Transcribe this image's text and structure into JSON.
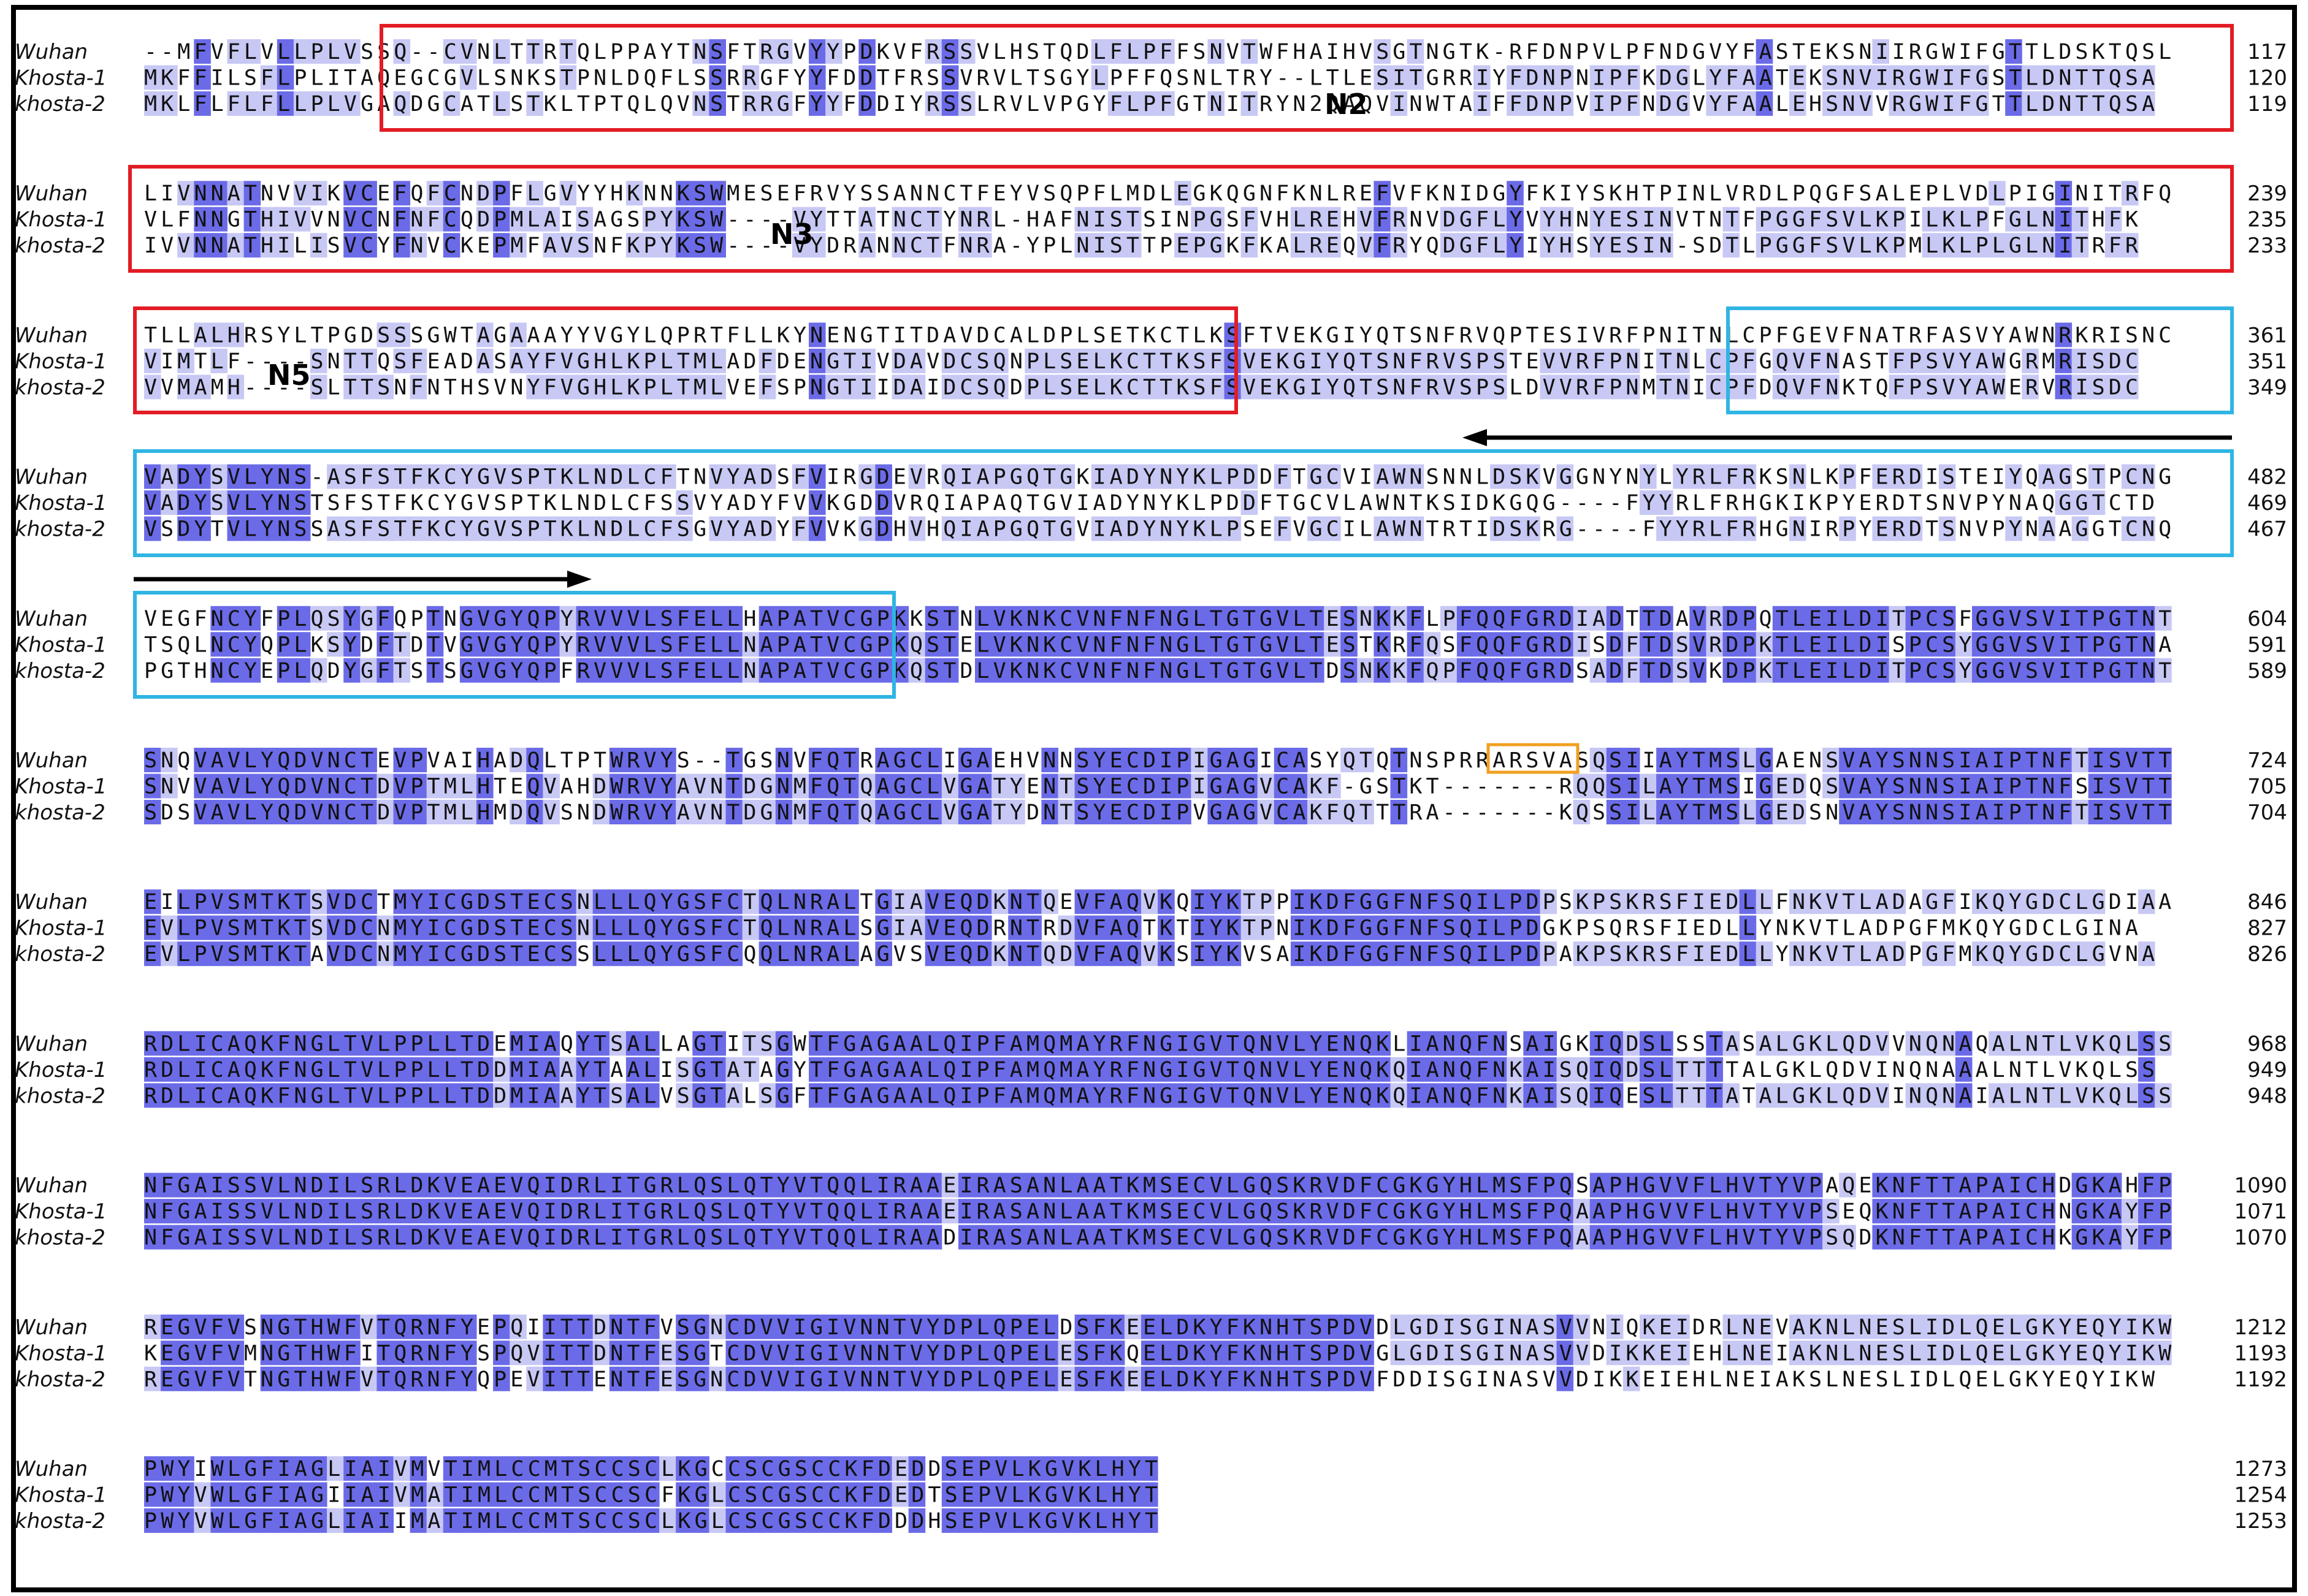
{
  "colors": {
    "dark": "#6b6be8",
    "light": "#c8c8f5",
    "red_box": "#e21c24",
    "blue_box": "#2fb5e3",
    "orange_box": "#f0a020",
    "arrow": "#000000",
    "frame": "#000000"
  },
  "sequences": [
    "Wuhan",
    "Khosta-1",
    "khosta-2"
  ],
  "blocks": [
    {
      "rows": [
        {
          "label": "Wuhan",
          "seq": "--MFVFLVLLPLVSSQ--CVNLTTRTQLPPAYTNSFTRGVYYPDKVFRSSVLHSTQDLFLPFFSNVTWFHAIHVSGTNGTK-RFDNPVLPFNDGVYFASTEKSNIIRGWIFGTTLDSKTQSL",
          "num": "117"
        },
        {
          "label": "Khosta-1",
          "seq": "MKFFILSFLPLITAQEGCGVLSNKSTPNLDQFLSSRRGFYYFDDTFRSSVRVLTSGYLPFFQSNLTRY--LTLESITGRRIYFDNPNIPFKDGLYFAATEKSNVIRGWIFGSTLDNTTQSA",
          "num": "120"
        },
        {
          "label": "khosta-2",
          "seq": "MKLFLFLFLLPLVGAQDGCATLSTKLTPTQLQVNSTRRGFYYFDDIYRSSLRVLVPGYFLPFGTNITRYN2QAQVINWTAIFFDNPVIPFNDGVYFAALEHSNVVRGWIFGTTLDNTTQSA",
          "num": "119"
        }
      ]
    },
    {
      "rows": [
        {
          "label": "Wuhan",
          "seq": "LIVNNATNVVIKVCEFQFCNDPFLGVYYHKNNKSWMESEFRVYSSANNCTFEYVSQPFLMDLEGKQGNFKNLREFVFKNIDGYFKIYSKHTPINLVRDLPQGFSALEPLVDLPIGINITRFQ",
          "num": "239"
        },
        {
          "label": "Khosta-1",
          "seq": "VLFNNGTHIVVNVCNFNFCQDPMLAISAGSPYKSW----VYTTATNCTYNRL-HAFNISTSINPGSFVHLREHVFRNVDGFLYVYHNYESINVTNTFPGGFSVLKPILKLPFGLNITHFK",
          "num": "235"
        },
        {
          "label": "khosta-2",
          "seq": "IVVNNATHILISVCYFNVCKEPMFAVSNFKPYKSW----VYDRANNCTFNRA-YPLNISTTPEPGKFKALREQVFRYQDGFLYIYHSYESIN-SDTLPGGFSVLKPMLKLPLGLNITRFR",
          "num": "233"
        }
      ]
    },
    {
      "rows": [
        {
          "label": "Wuhan",
          "seq": "TLLALHRSYLTPGDSSSGWTAGAAAYYVGYLQPRTFLLKYNENGTITDAVDCALDPLSETKCTLKSFTVEKGIYQTSNFRVQPTESIVRFPNITNLCPFGEVFNATRFASVYAWNRKRISNC",
          "num": "361"
        },
        {
          "label": "Khosta-1",
          "seq": "VIMTLF----SNTTQSFEADASAYFVGHLKPLTMLADFDENGTIVDAVDCSQNPLSELKCTTKSFSVEKGIYQTSNFRVSPSTEVVRFPNITNLCPFGQVFNASTFPSVYAWGRMRISDC",
          "num": "351"
        },
        {
          "label": "khosta-2",
          "seq": "VVMAMH----SLTTSNFNTHSVNYFVGHLKPLTMLVEFSPNGTIIDAIDCSQDPLSELKCTTKSFSVEKGIYQTSNFRVSPSLDVVRFPNMTNICPFDQVFNKTQFPSVYAWERVRISDC",
          "num": "349"
        }
      ]
    },
    {
      "rows": [
        {
          "label": "Wuhan",
          "seq": "VADYSVLYNS-ASFSTFKCYGVSPTKLNDLCFTNVYADSFVIRGDEVRQIAPGQTGKIADYNYKLPDDFTGCVIAWNSNNLDSKVGGNYNYLYRLFRKSNLKPFERDISTEIYQAGSTPCNG",
          "num": "482"
        },
        {
          "label": "Khosta-1",
          "seq": "VADYSVLYNSTSFSTFKCYGVSPTKLNDLCFSSVYADYFVVKGDDVRQIAPAQTGVIADYNYKLPDDFTGCVLAWNTKSIDKGQG----FYYRLFRHGKIKPYERDTSNVPYNAQGGTCTD",
          "num": "469"
        },
        {
          "label": "khosta-2",
          "seq": "VSDYTVLYNSSASFSTFKCYGVSPTKLNDLCFSGVYADYFVVKGDHVHQIAPGQTGVIADYNYKLPSEFVGCILAWNTRTIDSKRG----FYYRLFRHGNIRPYERDTSNVPYNAAGGTCNQ",
          "num": "467"
        }
      ]
    },
    {
      "rows": [
        {
          "label": "Wuhan",
          "seq": "VEGFNCYFPLQSYGFQPTNGVGYQPYRVVVLSFELLHAPATVCGPKKSTNLVKNKCVNFNFNGLTGTGVLTESNKKFLPFQQFGRDIADTTDAVRDPQTLEILDITPCSFGGVSVITPGTNT",
          "num": "604"
        },
        {
          "label": "Khosta-1",
          "seq": "TSQLNCYQPLKSYDFTDTVGVGYQPYRVVVLSFELLNAPATVCGPKQSTELVKNKCVNFNFNGLTGTGVLTESTKRFQSFQQFGRDISDFTDSVRDPKTLEILDISPCSYGGVSVITPGTNA",
          "num": "591"
        },
        {
          "label": "khosta-2",
          "seq": "PGTHNCYEPLQDYGFTSTSGVGYQPFRVVVLSFELLNAPATVCGPKQSTDLVKNKCVNFNFNGLTGTGVLTDSNKKFQPFQQFGRDSADFTDSVKDPKTLEILDITPCSYGGVSVITPGTNT",
          "num": "589"
        }
      ]
    },
    {
      "rows": [
        {
          "label": "Wuhan",
          "seq": "SNQVAVLYQDVNCTEVPVAIHADQLTPTWRVYS--TGSNVFQTRAGCLIGAEHVNNSYECDIPIGAGICASYQTQTNSPRRARSVASQSIIAYTMSLGAENSVAYSNNSIAIPTNFTISVTT",
          "num": "724"
        },
        {
          "label": "Khosta-1",
          "seq": "SNVVAVLYQDVNCTDVPTMLHTEQVAHDWRVYAVNTDGNMFQTQAGCLVGATYENTSYECDIPIGAGVCAKF-GSTKT-------RQQSILAYTMSIGEDQSVAYSNNSIAIPTNFSISVTT",
          "num": "705"
        },
        {
          "label": "khosta-2",
          "seq": "SDSVAVLYQDVNCTDVPTMLHMDQVSNDWRVYAVNTDGNMFQTQAGCLVGATYDNTSYECDIPVGAGVCAKFQTTTRA-------KQSSILAYTMSLGEDSNVAYSNNSIAIPTNFTISVTT",
          "num": "704"
        }
      ]
    },
    {
      "rows": [
        {
          "label": "Wuhan",
          "seq": "EILPVSMTKTSVDCTMYICGDSTECSNLLLQYGSFCTQLNRALTGIAVEQDKNTQEVFAQVKQIYKTPPIKDFGGFNFSQILPDPSKPSKRSFIEDLLFNKVTLADAGFIKQYGDCLGDIAA",
          "num": "846"
        },
        {
          "label": "Khosta-1",
          "seq": "EVLPVSMTKTSVDCNMYICGDSTECSNLLLQYGSFCTQLNRALSGIAVEQDRNTRDVFAQTKTIYKTPNIKDFGGFNFSQILPDGKPSQRSFIEDLLYNKVTLADPGFMKQYGDCLGINA",
          "num": "827"
        },
        {
          "label": "khosta-2",
          "seq": "EVLPVSMTKTAVDCNMYICGDSTECSSLLLQYGSFCQQLNRALAGVSVEQDKNTQDVFAQVKSIYKVSAIKDFGGFNFSQILPDPAKPSKRSFIEDLLYNKVTLADPGFMKQYGDCLGVNA",
          "num": "826"
        }
      ]
    },
    {
      "rows": [
        {
          "label": "Wuhan",
          "seq": "RDLICAQKFNGLTVLPPLLTDEMIAQYTSALLAGTITSGWTFGAGAALQIPFAMQMAYRFNGIGVTQNVLYENQKLIANQFNSAIGKIQDSLSSTASALGKLQDVVNQNAQALNTLVKQLSS",
          "num": "968"
        },
        {
          "label": "Khosta-1",
          "seq": "RDLICAQKFNGLTVLPPLLTDDMIAAYTAALISGTATAGYTFGAGAALQIPFAMQMAYRFNGIGVTQNVLYENQKQIANQFNKAISQIQDSLTTTTALGKLQDVINQNAAALNTLVKQLSS",
          "num": "949"
        },
        {
          "label": "khosta-2",
          "seq": "RDLICAQKFNGLTVLPPLLTDDMIAAYTSALVSGTALSGFTFGAGAALQIPFAMQMAYRFNGIGVTQNVLYENQKQIANQFNKAISQIQESLTTTATALGKLQDVINQNAIALNTLVKQLSS",
          "num": "948"
        }
      ]
    },
    {
      "rows": [
        {
          "label": "Wuhan",
          "seq": "NFGAISSVLNDILSRLDKVEAEVQIDRLITGRLQSLQTYVTQQLIRAAEIRASANLAATKMSECVLGQSKRVDFCGKGYHLMSFPQSAPHGVVFLHVTYVPAQEKNFTTAPAICHDGKAHFP",
          "num": "1090"
        },
        {
          "label": "Khosta-1",
          "seq": "NFGAISSVLNDILSRLDKVEAEVQIDRLITGRLQSLQTYVTQQLIRAAEIRASANLAATKMSECVLGQSKRVDFCGKGYHLMSFPQAAPHGVVFLHVTYVPSEQKNFTTAPAICHNGKAYFP",
          "num": "1071"
        },
        {
          "label": "khosta-2",
          "seq": "NFGAISSVLNDILSRLDKVEAEVQIDRLITGRLQSLQTYVTQQLIRAADIRASANLAATKMSECVLGQSKRVDFCGKGYHLMSFPQAAPHGVVFLHVTYVPSQDKNFTTAPAICHKGKAYFP",
          "num": "1070"
        }
      ]
    },
    {
      "rows": [
        {
          "label": "Wuhan",
          "seq": "REGVFVSNGTHWFVTQRNFYEPQIITTDNTFVSGNCDVVIGIVNNTVYDPLQPELDSFKEELDKYFKNHTSPDVDLGDISGINASVVNIQKEIDRLNEVAKNLNESLIDLQELGKYEQYIKW",
          "num": "1212"
        },
        {
          "label": "Khosta-1",
          "seq": "KEGVFVMNGTHWFITQRNFYSPQVITTDNTFESGTCDVVIGIVNNTVYDPLQPELESFKQELDKYFKNHTSPDVGLGDISGINASVVDIKKEIEHLNEIAKNLNESLIDLQELGKYEQYIKW",
          "num": "1193"
        },
        {
          "label": "khosta-2",
          "seq": "REGVFVTNGTHWFVTQRNFYQPEVITTENTFESGNCDVVIGIVNNTVYDPLQPELESFKEELDKYFKNHTSPDVFDDISGINASVVDIKKEIEHLNEIAKSLNESLIDLQELGKYEQYIKW",
          "num": "1192"
        }
      ]
    },
    {
      "rows": [
        {
          "label": "Wuhan",
          "seq": "PWYIWLGFIAGLIAIVMVTIMLCCMTSCCSCLKGCCSCGSCCKFDEDDSEPVLKGVKLHYT",
          "num": "1273"
        },
        {
          "label": "Khosta-1",
          "seq": "PWYVWLGFIAGIIAIVMATIMLCCMTSCCSCFKGLCSCGSCCKFDEDTSEPVLKGVKLHYT",
          "num": "1254"
        },
        {
          "label": "khosta-2",
          "seq": "PWYVWLGFIAGLIAIIMATIMLCCMTSCCSCLKGLCSCGSCCKFDDDHSEPVLKGVKLHYT",
          "num": "1253"
        }
      ]
    }
  ],
  "annotations": [
    "N2",
    "N3",
    "N5"
  ]
}
